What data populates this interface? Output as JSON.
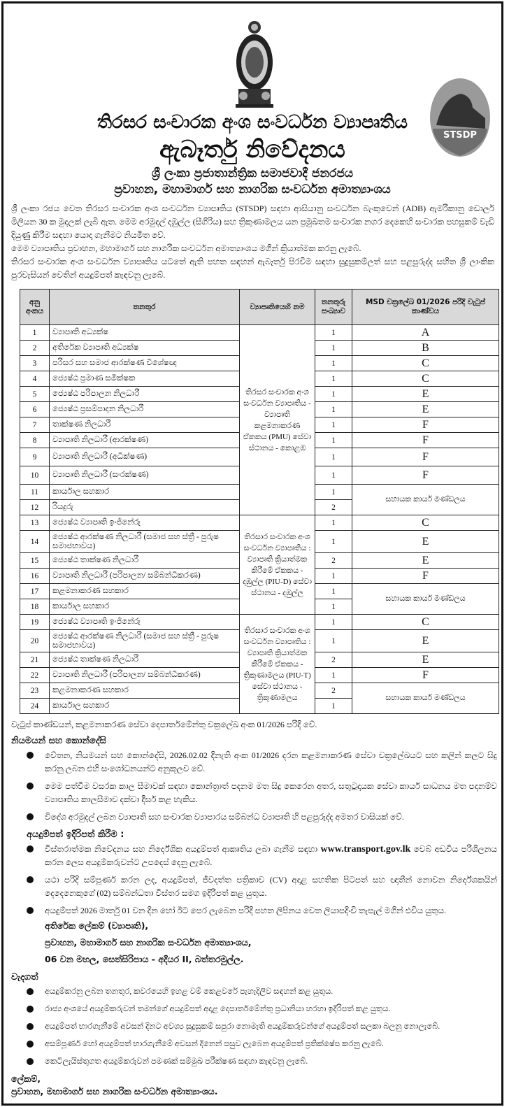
{
  "header": {
    "logo_left": "Sri Lanka national emblem",
    "logo_right_text": "STSDP",
    "project_name": "තිරසර සංචාරක අංශ සංවර්ධන ව්‍යාපෘතිය",
    "notice_title": "ඇබෑර්තු නිවේදනය",
    "country": "ශ්‍රී ලංකා ප්‍රජාතාන්ත්‍රික සමාජවාදී ජනරජය",
    "ministry": "ප්‍රවාහන, මහාමාර්ග සහ නාගරික සංවර්ධන අමාත්‍යාංශය"
  },
  "intro": [
    "ශ්‍රී ලංකා රජය වෙත තිරසර සංචාරක අංශ සංවර්ධන ව්‍යාපෘතිය (STSDP) සඳහා ආසියානු සංවර්ධන බැංකුවෙන් (ADB) ඇමරිකානු ඩොලර් මිලියන 30 ක මුදලක් ලැබී ඇත. මෙම අරමුදල් දඹුල්ල (සීගිරිය) සහ ත්‍රිකුණාමලය යන ප්‍රමුඛතම සංචාරක නගර දෙකෙහි සංචාරක පහසුකම් වැඩි දියුණු කිරීම සඳහා යොදා ගැනීමට නියමිත වේ.",
    "මෙම ව්‍යාපෘතිය ප්‍රවාහන, මහාමාර්ග සහ නාගරික සංවර්ධන අමාත්‍යාංශය මගින් ක්‍රියාත්මක කරනු ලැබේ.",
    "තිරසර සංචාරක අංශ සංවර්ධන ව්‍යාපෘතිය යටතේ ඇති පහත සඳහන් ඇබෑර්තු පිරවීම සඳහා සුදුසුකම්ලත් සහ පළපුරුද්ද සහිත ශ්‍රී ලාංකික පුරවැසියන් වෙතින් අයදුම්පත් කැඳවනු ලැබේ."
  ],
  "table": {
    "headers": [
      "අනු අංකය",
      "තනතුර",
      "ව්‍යාපෘතියෙහි නම",
      "තනතුරු සංඛ්‍යාව",
      "MSD චක්‍රලේඛ 01/2026 පරිදි වැටුප් කාණ්ඩය"
    ],
    "projects": [
      "තිරසර සංචාරක අංශ සංවර්ධන ව්‍යාපෘතිය - ව්‍යාපෘති කළමනාකරණ ඒකකය (PMU) සේවා ස්ථානය - කොළඹ",
      "තිරසාර සංචාරක අංශ සංවර්ධන ව්‍යාපෘතිය : ව්‍යාපෘති ක්‍රියාත්මක කිරීමේ ඒකකය - දඹුල්ල (PIU-D) සේවා ස්ථානය - දඹුල්ල",
      "තිරසාර සංචාරක අංශ සංවර්ධන ව්‍යාපෘතිය : ව්‍යාපෘති ක්‍රියාත්මක කිරීමේ ඒකකය - ත්‍රිකුණාමලය (PIU-T) සේවා ස්ථානය - ත්‍රිකුණාමලය"
    ],
    "support_staff": "සහායක කාර්ය මණ්ඩලය",
    "rows": [
      {
        "sn": "1",
        "title": "ව්‍යාපෘති අධ්‍යක්ෂ",
        "count": "1",
        "grade": "A"
      },
      {
        "sn": "2",
        "title": "අතිරේක ව්‍යාපෘති අධ්‍යක්ෂ",
        "count": "1",
        "grade": "B"
      },
      {
        "sn": "3",
        "title": "පරිසර සහ සමාජ ආරක්ෂණ විශේෂඥ",
        "count": "1",
        "grade": "C"
      },
      {
        "sn": "4",
        "title": "ජ්‍යෙෂ්ඨ ප්‍රමාණ සමීක්ෂක",
        "count": "1",
        "grade": "C"
      },
      {
        "sn": "5",
        "title": "ජ්‍යෙෂ්ඨ පරිපාලන නිලධාරී",
        "count": "1",
        "grade": "E"
      },
      {
        "sn": "6",
        "title": "ජ්‍යෙෂ්ඨ ප්‍රසම්පාදන නිලධාරී",
        "count": "1",
        "grade": "E"
      },
      {
        "sn": "7",
        "title": "තාක්ෂණ නිලධාරී",
        "count": "1",
        "grade": "F"
      },
      {
        "sn": "8",
        "title": "ව්‍යාපෘති නිලධාරී (ආරක්ෂණ)",
        "count": "1",
        "grade": "F"
      },
      {
        "sn": "9",
        "title": "ව්‍යාපෘති නිලධාරී (අධීක්ෂණ)",
        "count": "1",
        "grade": "F"
      },
      {
        "sn": "10",
        "title": "ව්‍යාපෘති නිලධාරී (සංරක්ෂණ)",
        "count": "1",
        "grade": "F"
      },
      {
        "sn": "11",
        "title": "කාර්යාල සහකාර",
        "count": "1",
        "grade": ""
      },
      {
        "sn": "12",
        "title": "රියදුරු",
        "count": "2",
        "grade": ""
      },
      {
        "sn": "13",
        "title": "ජ්‍යෙෂ්ඨ ව්‍යාපෘති ඉංජිනේරු",
        "count": "1",
        "grade": "C"
      },
      {
        "sn": "14",
        "title": "ජ්‍යෙෂ්ඨ ආරක්ෂණ නිලධාරී (සමාජ සහ ස්ත්‍රී - පුරුෂ සමාජභාවය)",
        "count": "1",
        "grade": "E"
      },
      {
        "sn": "15",
        "title": "ජ්‍යෙෂ්ඨ තාක්ෂණ නිලධාරී",
        "count": "2",
        "grade": "E"
      },
      {
        "sn": "16",
        "title": "ව්‍යාපෘති නිලධාරී (පරිපාලන/ සම්බන්ධීකරණ)",
        "count": "1",
        "grade": "F"
      },
      {
        "sn": "17",
        "title": "කළමනාකරණ සහකාර",
        "count": "1",
        "grade": ""
      },
      {
        "sn": "18",
        "title": "කාර්යාල සහකාර",
        "count": "1",
        "grade": ""
      },
      {
        "sn": "19",
        "title": "ජ්‍යෙෂ්ඨ ව්‍යාපෘති ඉංජිනේරු",
        "count": "1",
        "grade": "C"
      },
      {
        "sn": "20",
        "title": "ජ්‍යෙෂ්ඨ ආරක්ෂණ නිලධාරී (සමාජ සහ ස්ත්‍රී - පුරුෂ සමාජභාවය)",
        "count": "1",
        "grade": "E"
      },
      {
        "sn": "21",
        "title": "ජ්‍යෙෂ්ඨ තාක්ෂණ නිලධාරී",
        "count": "2",
        "grade": "E"
      },
      {
        "sn": "22",
        "title": "ව්‍යාපෘති නිලධාරී (පරිපාලන/ සම්බන්ධීකරණ)",
        "count": "1",
        "grade": "F"
      },
      {
        "sn": "23",
        "title": "කළමනාකරණ සහකාර",
        "count": "2",
        "grade": ""
      },
      {
        "sn": "24",
        "title": "කාර්යාල සහකාර",
        "count": "1",
        "grade": ""
      }
    ]
  },
  "salary_note": "වැටුප් කාණ්ඩයන්, කළමනාකරණ සේවා දෙපාර්තමේන්තු චක්‍රලේඛ අංක 01/2026 පරිදි වේ.",
  "terms": {
    "heading": "නියමයන් සහ කොන්දේසි",
    "items": [
      "වේතන, නියමයන් සහ කොන්දේසි, 2026.02.02 දිනැති අංක 01/2026 දරන කළමනාකරණ සේවා චක්‍රලේඛයට සහ කලින් කලට සිදු කරනු ලබන එහි සංශෝධනයන්ට අනුකූලව වේ.",
      "මෙම පත්වීම වසරක කාල සීමාවක් සඳහා කොන්ත්‍රාත් පදනම මත සිදු කෙරෙන අතර, සතුටුදායක සේවා කාර්ය සාධනය මත පදනම්ව ව්‍යාපෘතිය කාලසීමාව දක්වා දීර්ඝ කළ හැකිය.",
      "විදේශ අරමුදල් ලබන ව්‍යාපෘති සහ සංචාරක ව්‍යාපාරය සම්බන්ධ ව්‍යාපෘති හි පළපුරුද්ද අමතර වාසියක් වේ."
    ]
  },
  "submission": {
    "heading": "අයදුම්පත් ඉදිරිපත් කිරීම :",
    "item1_before": "විස්තරාත්මක නිවේදනය සහ නිර්දේශික අයදුම්පත් ආකෘතිය ලබා ගැනීම සඳහා ",
    "link": "www.transport.gov.lk",
    "item1_after": " වෙබ් අඩවිය පරිශීලනය කරන ලෙස අයදුම්කරුවන්ට උපදෙස් දෙනු ලැබේ.",
    "item2": "යථා පරිදි සම්පූර්ණ කරන ලද, අයදුම්පත්, ජීවදත්ත පත්‍රිකාව (CV) අදාළ සහතික පිටපත් සහ ඥාතීන් නොවන නිර්දේශකයින් දෙදෙනෙකුගේ (02) සම්බන්ධතා විස්තර සමග ඉදිරිපත් කළ යුතුය.",
    "item3": "අයදුම්පත් 2026 මාර්තු 01 වන දින හෝ ඊට පෙර ලැබෙන පරිදි පහත ලිපිනය වෙත ලියාපදිංචි තැපැල් මගින් එවිය යුතුය.",
    "address": [
      "අතිරේක ලේකම් (ව්‍යාපෘති),",
      "ප්‍රවාහන, මහාමාර්ග සහ නාගරික සංවර්ධන අමාත්‍යාංශය,",
      "06 වන මහල, සෙත්සිරිපාය - අදියර II, බත්තරමුල්ල."
    ]
  },
  "important": {
    "heading": "වැදගත්",
    "items": [
      "අයදුම්කරනු ලබන තනතුර, කවරයෙහි ඉහළ වම් කෙළවරේ පැහැදිලිව සඳහන් කළ යුතුය.",
      "රාජ්‍ය අංශයේ අයදුම්කරුවන් තමන්ගේ අයදුම්පත් අදාළ දෙපාර්තමේන්තු ප්‍රධානියා හරහා ඉදිරිපත් කළ යුතුය.",
      "අයදුම්පත් භාරගැනීමේ අවසන් දිනට අවශ්‍ය සුදුසුකම් සපුරා නොමැති අයදුම්කරුවන්ගේ අයදුම්පත් සලකා බලනු නොලැබේ.",
      "අසම්පූර්ණ හෝ අයදුම්පත් භාරගැනීමේ අවසන් දිනෙන් පසුව ලැබෙන අයදුම්පත් ප්‍රතික්ෂේප කරනු ලැබේ.",
      "කෙටිලැයිස්තුගත අයදුම්කරුවන් පමණක් සම්මුඛ පරීක්ෂණ සඳහා කැඳවනු ලැබේ."
    ]
  },
  "signature": {
    "line1": "ලේකම්,",
    "line2": "ප්‍රවාහන, මහාමාර්ග සහ නාගරික සංවර්ධන අමාත්‍යාංශය."
  }
}
